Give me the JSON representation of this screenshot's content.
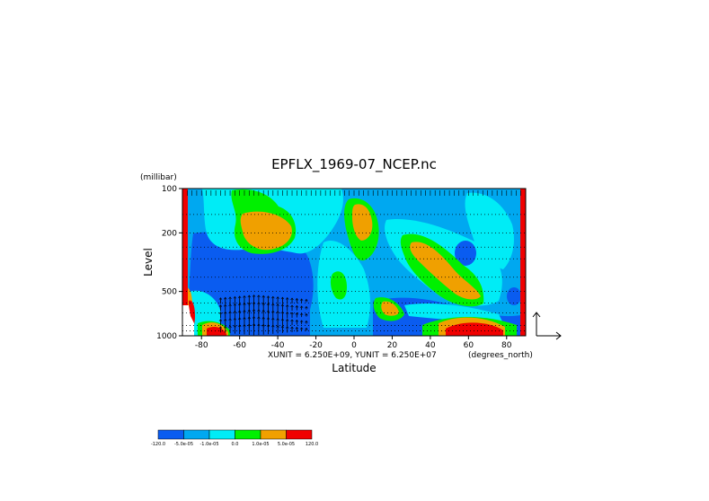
{
  "chart_data": {
    "type": "contour",
    "title": "EPFLX_1969-07_NCEP.nc",
    "xlabel": "Latitude",
    "ylabel": "Level",
    "y_unit_label": "(millibar)",
    "x_unit_label": "(degrees_north)",
    "vector_scale_label": "XUNIT = 6.250E+09, YUNIT = 6.250E+07",
    "x_ticks": [
      "-80",
      "-60",
      "-40",
      "-20",
      "0",
      "20",
      "40",
      "60",
      "80"
    ],
    "y_ticks": [
      "100",
      "200",
      "500",
      "1000"
    ],
    "xlim": [
      -90,
      90
    ],
    "ylim": [
      1000,
      100
    ],
    "y_scale": "log",
    "grid": "dotted",
    "levels": [
      {
        "label": "-120.0",
        "color": "#0a5cf0"
      },
      {
        "label": "-5.0e-05",
        "color": "#00a8f0"
      },
      {
        "label": "-1.0e-05",
        "color": "#00ecf6"
      },
      {
        "label": "0.0",
        "color": "#00f000"
      },
      {
        "label": "1.0e-05",
        "color": "#f0a000"
      },
      {
        "label": "5.0e-05",
        "color": "#f00000"
      },
      {
        "label": "120.0",
        "color": ""
      }
    ]
  }
}
